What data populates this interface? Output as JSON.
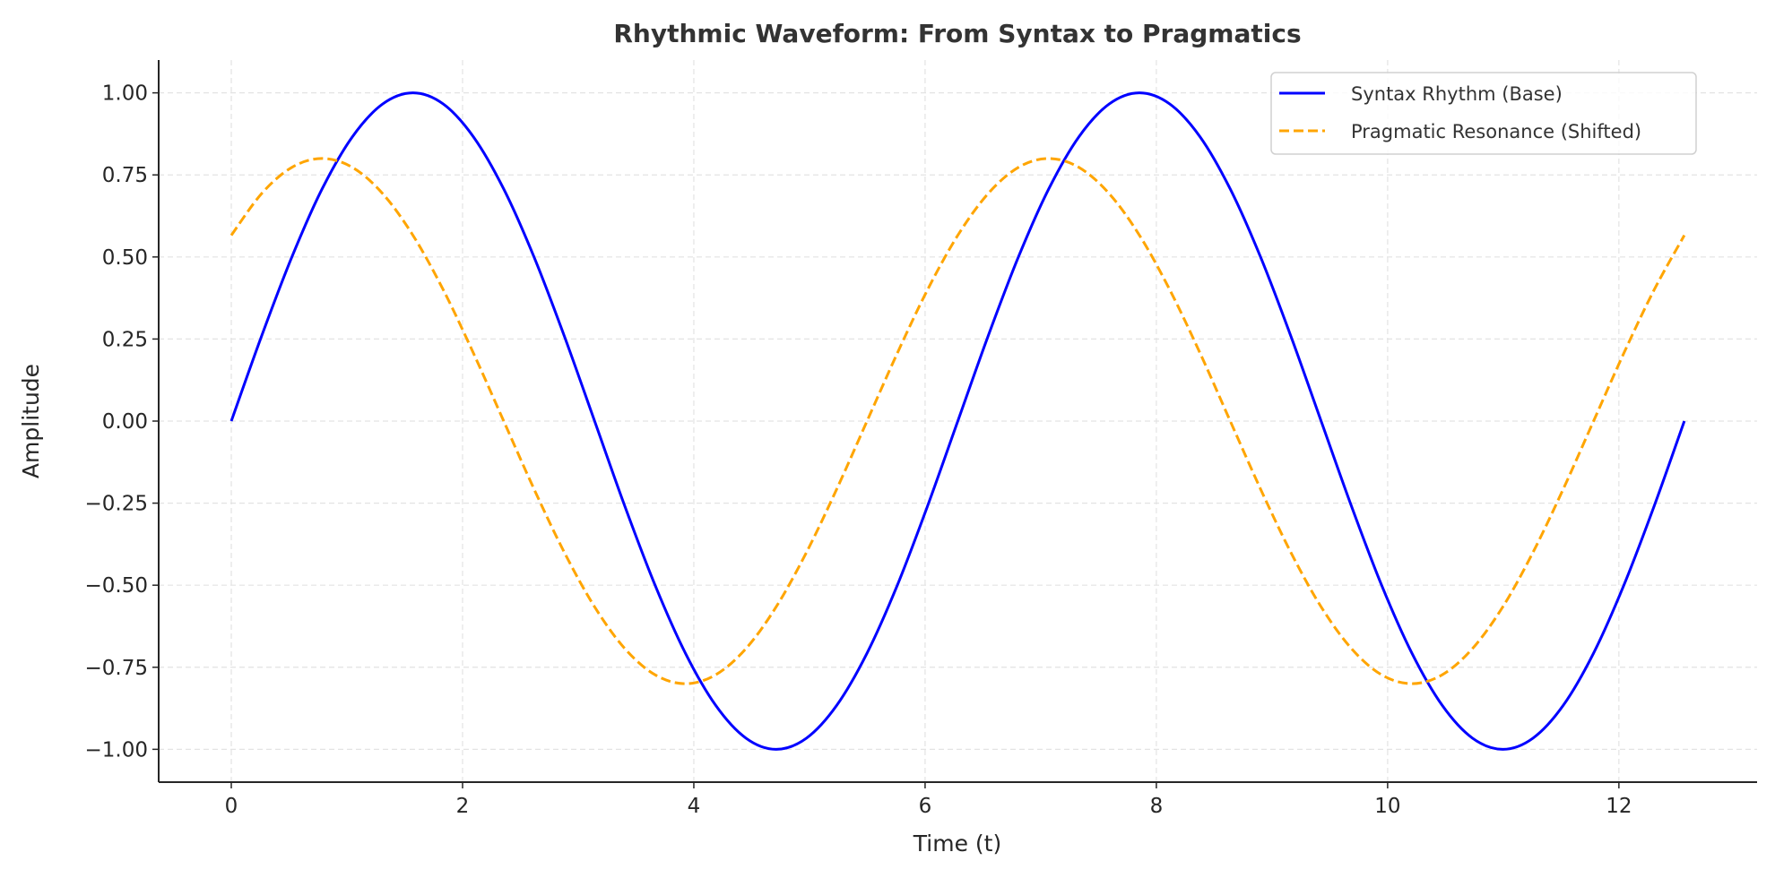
{
  "chart_data": {
    "type": "line",
    "title": "Rhythmic Waveform: From Syntax to Pragmatics",
    "xlabel": "Time (t)",
    "ylabel": "Amplitude",
    "xlim": [
      -0.628,
      13.195
    ],
    "ylim": [
      -1.1,
      1.1
    ],
    "xticks": [
      0,
      2,
      4,
      6,
      8,
      10,
      12
    ],
    "xtick_labels": [
      "0",
      "2",
      "4",
      "6",
      "8",
      "10",
      "12"
    ],
    "yticks": [
      1,
      0.75,
      0.5,
      0.25,
      0,
      -0.25,
      -0.5,
      -0.75,
      -1
    ],
    "ytick_labels": [
      "1.00",
      "0.75",
      "0.50",
      "0.25",
      "0.00",
      "−0.25",
      "−0.50",
      "−0.75",
      "−1.00"
    ],
    "grid": true,
    "legend_position": "top-right",
    "x": [
      0,
      0.262,
      0.524,
      0.785,
      1.047,
      1.309,
      1.571,
      1.833,
      2.094,
      2.356,
      2.618,
      2.88,
      3.142,
      3.403,
      3.665,
      3.927,
      4.189,
      4.451,
      4.712,
      4.974,
      5.236,
      5.498,
      5.76,
      6.021,
      6.283,
      6.545,
      6.807,
      7.069,
      7.33,
      7.592,
      7.854,
      8.116,
      8.378,
      8.639,
      8.901,
      9.163,
      9.425,
      9.687,
      9.948,
      10.21,
      10.472,
      10.734,
      10.996,
      11.257,
      11.519,
      11.781,
      12.043,
      12.305,
      12.566
    ],
    "series": [
      {
        "name": "Syntax Rhythm (Base)",
        "color": "#0000ff",
        "style": "solid",
        "values": [
          0,
          0.259,
          0.5,
          0.707,
          0.866,
          0.966,
          1,
          0.966,
          0.866,
          0.707,
          0.5,
          0.259,
          0,
          -0.259,
          -0.5,
          -0.707,
          -0.866,
          -0.966,
          -1,
          -0.966,
          -0.866,
          -0.707,
          -0.5,
          -0.259,
          0,
          0.259,
          0.5,
          0.707,
          0.866,
          0.966,
          1,
          0.966,
          0.866,
          0.707,
          0.5,
          0.259,
          0,
          -0.259,
          -0.5,
          -0.707,
          -0.866,
          -0.966,
          -1,
          -0.966,
          -0.866,
          -0.707,
          -0.5,
          -0.259,
          0
        ]
      },
      {
        "name": "Pragmatic Resonance (Shifted)",
        "color": "#ffa500",
        "style": "dashed",
        "values": [
          0.566,
          0.693,
          0.773,
          0.8,
          0.773,
          0.693,
          0.566,
          0.4,
          0.207,
          0,
          -0.207,
          -0.4,
          -0.566,
          -0.693,
          -0.773,
          -0.8,
          -0.773,
          -0.693,
          -0.566,
          -0.4,
          -0.207,
          0,
          0.207,
          0.4,
          0.566,
          0.693,
          0.773,
          0.8,
          0.773,
          0.693,
          0.566,
          0.4,
          0.207,
          0,
          -0.207,
          -0.4,
          -0.566,
          -0.693,
          -0.773,
          -0.8,
          -0.773,
          -0.693,
          -0.566,
          -0.4,
          -0.207,
          0,
          0.207,
          0.4,
          0.566
        ]
      }
    ]
  }
}
